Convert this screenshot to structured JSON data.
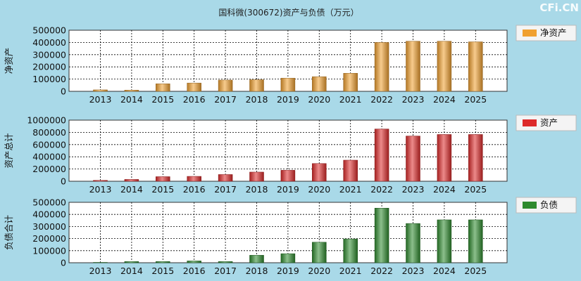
{
  "title": "国科微(300672)资产与负债（万元）",
  "watermark": "CFi.CN",
  "colors": {
    "background": "#a9d9e8",
    "plot": "#ffffff",
    "equity": "#f0a030",
    "assets": "#dd2a2a",
    "liabilities": "#2e8a2e"
  },
  "chart_data": [
    {
      "type": "bar",
      "ylabel": "净资产",
      "legend": "净资产",
      "categories": [
        "2013",
        "2014",
        "2015",
        "2016",
        "2017",
        "2018",
        "2019",
        "2020",
        "2021",
        "2022",
        "2023",
        "2024",
        "2025"
      ],
      "values": [
        12000,
        10000,
        62000,
        68000,
        92000,
        95000,
        108000,
        120000,
        148000,
        400000,
        410000,
        410000,
        405000
      ],
      "ylim": [
        0,
        500000
      ],
      "yticks": [
        "0",
        "100000",
        "200000",
        "300000",
        "400000",
        "500000"
      ],
      "grid": true,
      "legend_position": "right"
    },
    {
      "type": "bar",
      "ylabel": "资产总计",
      "legend": "资产",
      "categories": [
        "2013",
        "2014",
        "2015",
        "2016",
        "2017",
        "2018",
        "2019",
        "2020",
        "2021",
        "2022",
        "2023",
        "2024",
        "2025"
      ],
      "values": [
        15000,
        30000,
        75000,
        80000,
        110000,
        150000,
        180000,
        290000,
        345000,
        855000,
        740000,
        765000,
        765000
      ],
      "ylim": [
        0,
        1000000
      ],
      "yticks": [
        "0",
        "200000",
        "400000",
        "600000",
        "800000",
        "1000000"
      ],
      "grid": true,
      "legend_position": "right"
    },
    {
      "type": "bar",
      "ylabel": "负债合计",
      "legend": "负债",
      "categories": [
        "2013",
        "2014",
        "2015",
        "2016",
        "2017",
        "2018",
        "2019",
        "2020",
        "2021",
        "2022",
        "2023",
        "2024",
        "2025"
      ],
      "values": [
        3000,
        10000,
        10000,
        15000,
        10000,
        62000,
        75000,
        170000,
        197000,
        452000,
        325000,
        355000,
        355000
      ],
      "ylim": [
        0,
        500000
      ],
      "yticks": [
        "0",
        "100000",
        "200000",
        "300000",
        "400000",
        "500000"
      ],
      "grid": true,
      "legend_position": "right"
    }
  ]
}
